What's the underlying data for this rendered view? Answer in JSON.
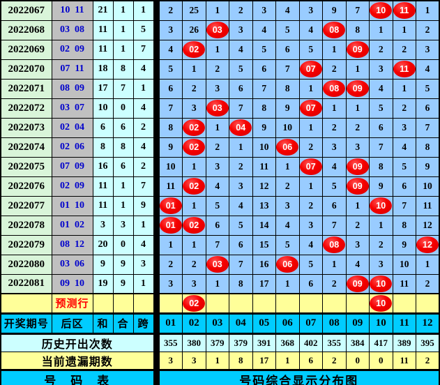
{
  "chart_data": {
    "type": "table",
    "title": "号码综合显示分布图",
    "left_title": "号　码　表",
    "header_left": [
      "开奖期号",
      "后区",
      "和",
      "合",
      "跨"
    ],
    "number_headers": [
      "01",
      "02",
      "03",
      "04",
      "05",
      "06",
      "07",
      "08",
      "09",
      "10",
      "11",
      "12"
    ],
    "rows": [
      {
        "period": "2022067",
        "back": "10  11",
        "sum": "21",
        "combine": "1",
        "span": "1",
        "cells": [
          "2",
          "25",
          "1",
          "2",
          "3",
          "4",
          "3",
          "9",
          "7",
          {
            "b": "10"
          },
          {
            "b": "11"
          },
          "1"
        ]
      },
      {
        "period": "2022068",
        "back": "03  08",
        "sum": "11",
        "combine": "1",
        "span": "5",
        "cells": [
          "3",
          "26",
          {
            "b": "03"
          },
          "3",
          "4",
          "5",
          "4",
          {
            "b": "08"
          },
          "8",
          "1",
          "1",
          "2"
        ]
      },
      {
        "period": "2022069",
        "back": "02  09",
        "sum": "11",
        "combine": "1",
        "span": "7",
        "cells": [
          "4",
          {
            "b": "02"
          },
          "1",
          "4",
          "5",
          "6",
          "5",
          "1",
          {
            "b": "09"
          },
          "2",
          "2",
          "3"
        ]
      },
      {
        "period": "2022070",
        "back": "07  11",
        "sum": "18",
        "combine": "8",
        "span": "4",
        "cells": [
          "5",
          "1",
          "2",
          "5",
          "6",
          "7",
          {
            "b": "07"
          },
          "2",
          "1",
          "3",
          {
            "b": "11"
          },
          "4"
        ]
      },
      {
        "period": "2022071",
        "back": "08  09",
        "sum": "17",
        "combine": "7",
        "span": "1",
        "cells": [
          "6",
          "2",
          "3",
          "6",
          "7",
          "8",
          "1",
          {
            "b": "08"
          },
          {
            "b": "09"
          },
          "4",
          "1",
          "5"
        ]
      },
      {
        "period": "2022072",
        "back": "03  07",
        "sum": "10",
        "combine": "0",
        "span": "4",
        "cells": [
          "7",
          "3",
          {
            "b": "03"
          },
          "7",
          "8",
          "9",
          {
            "b": "07"
          },
          "1",
          "1",
          "5",
          "2",
          "6"
        ]
      },
      {
        "period": "2022073",
        "back": "02  04",
        "sum": "6",
        "combine": "6",
        "span": "2",
        "cells": [
          "8",
          {
            "b": "02"
          },
          "1",
          {
            "b": "04"
          },
          "9",
          "10",
          "1",
          "2",
          "2",
          "6",
          "3",
          "7"
        ]
      },
      {
        "period": "2022074",
        "back": "02  06",
        "sum": "8",
        "combine": "8",
        "span": "4",
        "cells": [
          "9",
          {
            "b": "02"
          },
          "2",
          "1",
          "10",
          {
            "b": "06"
          },
          "2",
          "3",
          "3",
          "7",
          "4",
          "8"
        ]
      },
      {
        "period": "2022075",
        "back": "07  09",
        "sum": "16",
        "combine": "6",
        "span": "2",
        "cells": [
          "10",
          "1",
          "3",
          "2",
          "11",
          "1",
          {
            "b": "07"
          },
          "4",
          {
            "b": "09"
          },
          "8",
          "5",
          "9"
        ]
      },
      {
        "period": "2022076",
        "back": "02  09",
        "sum": "11",
        "combine": "1",
        "span": "7",
        "cells": [
          "11",
          {
            "b": "02"
          },
          "4",
          "3",
          "12",
          "2",
          "1",
          "5",
          {
            "b": "09"
          },
          "9",
          "6",
          "10"
        ]
      },
      {
        "period": "2022077",
        "back": "01  10",
        "sum": "11",
        "combine": "1",
        "span": "9",
        "cells": [
          {
            "b": "01"
          },
          "1",
          "5",
          "4",
          "13",
          "3",
          "2",
          "6",
          "1",
          {
            "b": "10"
          },
          "7",
          "11"
        ]
      },
      {
        "period": "2022078",
        "back": "01  02",
        "sum": "3",
        "combine": "3",
        "span": "1",
        "cells": [
          {
            "b": "01"
          },
          {
            "b": "02"
          },
          "6",
          "5",
          "14",
          "4",
          "3",
          "7",
          "2",
          "1",
          "8",
          "12"
        ]
      },
      {
        "period": "2022079",
        "back": "08  12",
        "sum": "20",
        "combine": "0",
        "span": "4",
        "cells": [
          "1",
          "1",
          "7",
          "6",
          "15",
          "5",
          "4",
          {
            "b": "08"
          },
          "3",
          "2",
          "9",
          {
            "b": "12"
          }
        ]
      },
      {
        "period": "2022080",
        "back": "03  06",
        "sum": "9",
        "combine": "9",
        "span": "3",
        "cells": [
          "2",
          "2",
          {
            "b": "03"
          },
          "7",
          "16",
          {
            "b": "06"
          },
          "5",
          "1",
          "4",
          "3",
          "10",
          "1"
        ]
      },
      {
        "period": "2022081",
        "back": "09  10",
        "sum": "19",
        "combine": "9",
        "span": "1",
        "cells": [
          "3",
          "3",
          "1",
          "8",
          "17",
          "1",
          "6",
          "2",
          {
            "b": "09"
          },
          {
            "b": "10"
          },
          "11",
          "2"
        ]
      }
    ],
    "prediction": {
      "label": "预测行",
      "cells": [
        "",
        {
          "b": "02"
        },
        "",
        "",
        "",
        "",
        "",
        "",
        "",
        {
          "b": "10"
        },
        "",
        ""
      ]
    },
    "history": {
      "label": "历史开出次数",
      "values": [
        "355",
        "380",
        "379",
        "379",
        "391",
        "368",
        "402",
        "355",
        "384",
        "417",
        "389",
        "395"
      ]
    },
    "miss": {
      "label": "当前遗漏期数",
      "values": [
        "3",
        "3",
        "1",
        "8",
        "17",
        "1",
        "6",
        "2",
        "0",
        "0",
        "11",
        "2"
      ]
    }
  },
  "colors": {
    "grid_blue": "#99CCFF",
    "ball_red": "#EE0000",
    "header_cyan": "#00CCFF",
    "row_yellow": "#FFFF99",
    "period_green": "#D9F5D9",
    "back_zone_gray": "#C0C0C0",
    "stat_cyan": "#CCFFFF",
    "back_text_blue": "#0000CC",
    "prediction_text_red": "#FF0000"
  }
}
